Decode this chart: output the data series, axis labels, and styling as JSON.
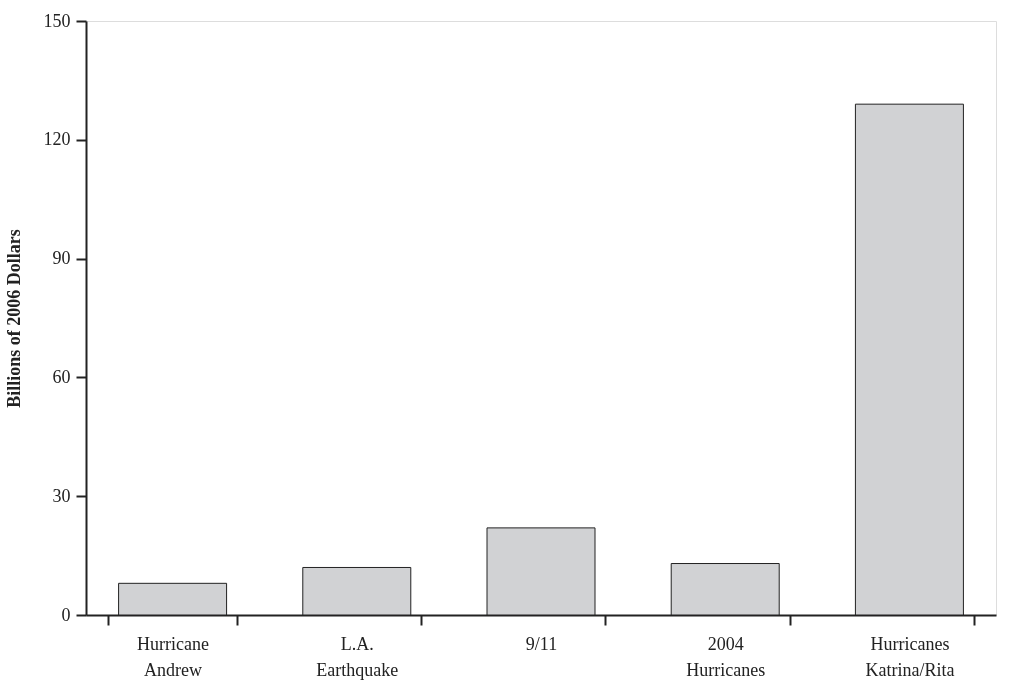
{
  "chart_data": {
    "type": "bar",
    "categories": [
      "Hurricane\nAndrew",
      "L.A.\nEarthquake",
      "9/11",
      "2004\nHurricanes",
      "Hurricanes\nKatrina/Rita"
    ],
    "values": [
      8,
      12,
      22,
      13,
      129
    ],
    "color": "#d1d2d4",
    "ylabel": "Billions of 2006 Dollars",
    "ylim": [
      0,
      150
    ],
    "yticks": [
      0,
      30,
      60,
      90,
      120,
      150
    ],
    "grid": false,
    "legend": false
  }
}
